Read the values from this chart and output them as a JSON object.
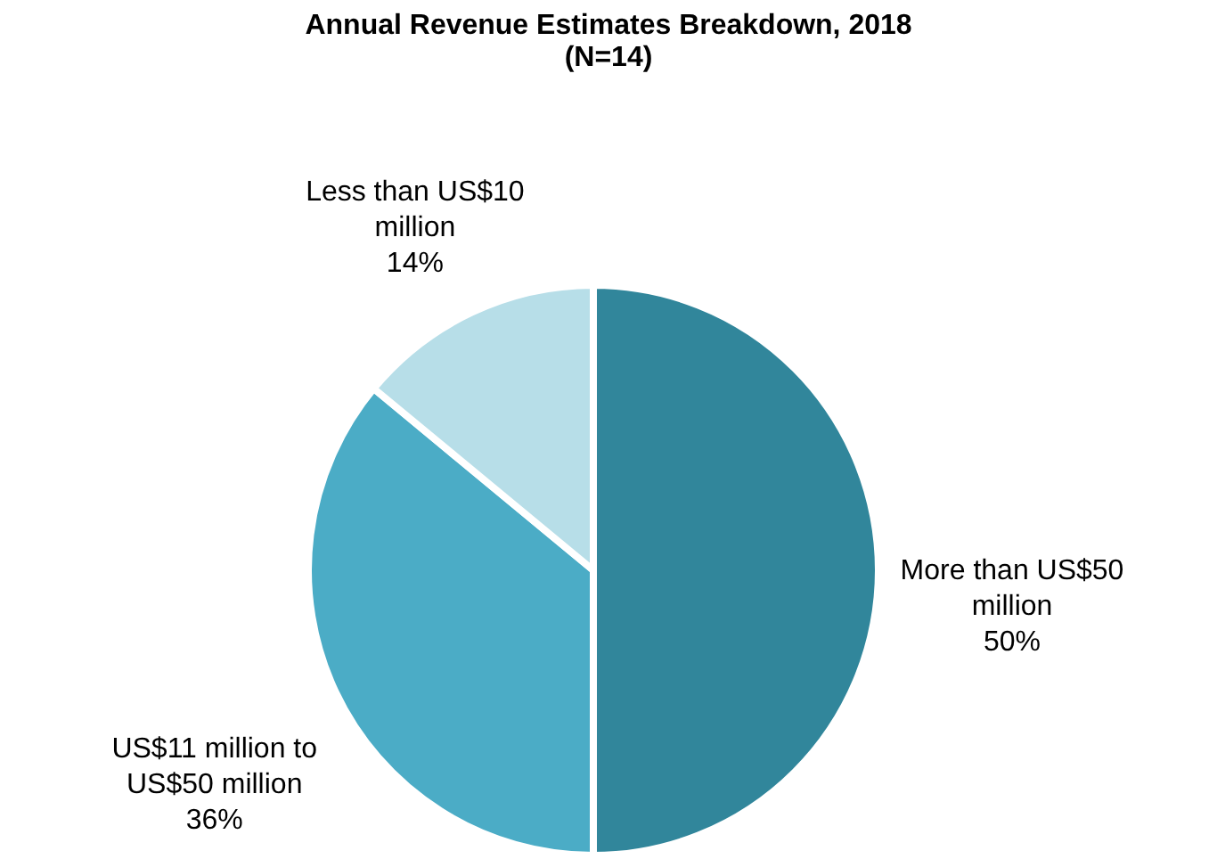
{
  "chart_data": {
    "type": "pie",
    "title": "Annual Revenue Estimates Breakdown, 2018",
    "subtitle": "(N=14)",
    "categories": [
      "More than US$50 million",
      "US$11 million to US$50 million",
      "Less than US$10 million"
    ],
    "values": [
      50,
      36,
      14
    ],
    "colors": [
      "#31869b",
      "#4bacc6",
      "#b7dee8"
    ],
    "value_labels": [
      "50%",
      "36%",
      "14%"
    ]
  }
}
